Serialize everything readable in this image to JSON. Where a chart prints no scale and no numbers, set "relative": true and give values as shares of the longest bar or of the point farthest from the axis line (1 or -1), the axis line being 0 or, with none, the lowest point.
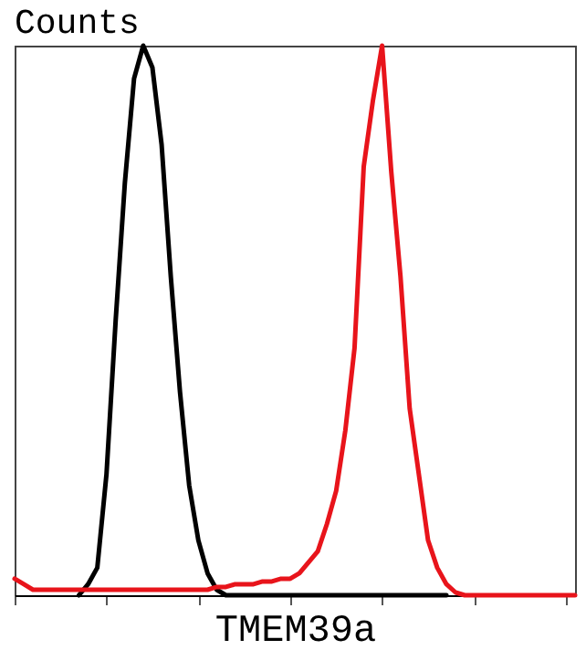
{
  "chart_data": {
    "type": "line",
    "relative": true,
    "ylabel": "Counts",
    "xlabel": "TMEM39a",
    "tick_labels": false,
    "grid": false,
    "legend": false,
    "marker": "none",
    "line_style": "solid",
    "categories": [
      null,
      null,
      null,
      null,
      null,
      null,
      null,
      null,
      null,
      null,
      null,
      null,
      null,
      null,
      null,
      null,
      null,
      null,
      null,
      null,
      null,
      null,
      null,
      null,
      null,
      null,
      null,
      null,
      null,
      null,
      null,
      null,
      null,
      null,
      null,
      null,
      null,
      null,
      null,
      null,
      null,
      null,
      null,
      null,
      null,
      null,
      null,
      null,
      null,
      null,
      null,
      null,
      null,
      null,
      null,
      null,
      null,
      null,
      null,
      null,
      null,
      null
    ],
    "series": [
      {
        "color": "#000000",
        "values": [
          null,
          null,
          null,
          null,
          null,
          null,
          null,
          0,
          0.02,
          0.05,
          0.22,
          0.5,
          0.75,
          0.94,
          1,
          0.96,
          0.82,
          0.58,
          0.37,
          0.2,
          0.1,
          0.04,
          0.01,
          0,
          0,
          0,
          0,
          0,
          0,
          0,
          0,
          0,
          0,
          0,
          0,
          0,
          0,
          0,
          0,
          0,
          0,
          0,
          0,
          0,
          0,
          0,
          0,
          0,
          null,
          null,
          null,
          null,
          null,
          null,
          null,
          null,
          null,
          null,
          null,
          null,
          null,
          null
        ]
      },
      {
        "color": "#e8141b",
        "values": [
          0.03,
          0.02,
          0.01,
          0.01,
          0.01,
          0.01,
          0.01,
          0.01,
          0.01,
          0.01,
          0.01,
          0.01,
          0.01,
          0.01,
          0.01,
          0.01,
          0.01,
          0.01,
          0.01,
          0.01,
          0.01,
          0.01,
          0.015,
          0.015,
          0.02,
          0.02,
          0.02,
          0.025,
          0.025,
          0.03,
          0.03,
          0.04,
          0.06,
          0.08,
          0.13,
          0.19,
          0.3,
          0.45,
          0.78,
          0.9,
          1,
          0.77,
          0.58,
          0.34,
          0.22,
          0.1,
          0.05,
          0.02,
          0.005,
          0,
          0,
          0,
          0,
          0,
          0,
          0,
          0,
          0,
          0,
          0,
          0,
          0
        ]
      }
    ]
  }
}
